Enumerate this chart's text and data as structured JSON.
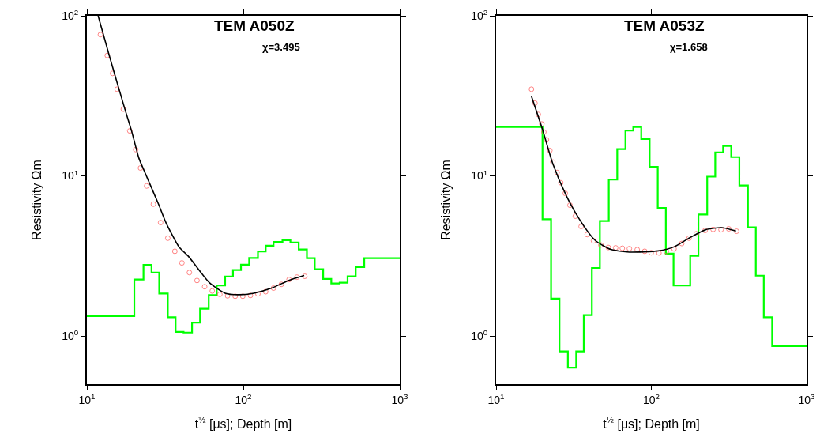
{
  "chart_data": [
    {
      "type": "line",
      "title": "TEM A050Z",
      "subtitle": "χ=3.495",
      "xlabel": "t$^{½}$ [μs]; Depth [m]",
      "ylabel": "Resistivity Ωm",
      "log": "xy",
      "xlim": [
        10,
        1000
      ],
      "ylim": [
        0.5,
        100
      ],
      "xticks": [
        {
          "value": 10,
          "label": "10$^{1}$"
        },
        {
          "value": 100,
          "label": "10$^{2}$"
        },
        {
          "value": 1000,
          "label": "10$^{3}$"
        }
      ],
      "yticks": [
        {
          "value": 1,
          "label": "10$^{0}$"
        },
        {
          "value": 10,
          "label": "10$^{1}$"
        },
        {
          "value": 100,
          "label": "10$^{2}$"
        }
      ],
      "series": [
        {
          "type": "step",
          "color": "#00ff00",
          "x": [
            10,
            20.1,
            23.0,
            25.9,
            29.0,
            32.9,
            36.9,
            41.5,
            47.0,
            52.9,
            60.1,
            67.6,
            76.5,
            85.9,
            96.6,
            109,
            124,
            139,
            156,
            178,
            200,
            226,
            255,
            286,
            324,
            365,
            413,
            464,
            523,
            593,
            1000
          ],
          "values": [
            1.33,
            2.25,
            2.78,
            2.49,
            1.84,
            1.31,
            1.06,
            1.05,
            1.21,
            1.48,
            1.8,
            2.07,
            2.35,
            2.58,
            2.79,
            3.07,
            3.37,
            3.66,
            3.87,
            3.96,
            3.83,
            3.47,
            3.06,
            2.61,
            2.27,
            2.13,
            2.15,
            2.36,
            2.69,
            3.06,
            3.06
          ]
        },
        {
          "type": "scatter",
          "color": "#ff6666",
          "marker": "circle",
          "x": [
            12.2,
            13.5,
            14.6,
            15.6,
            17.1,
            18.8,
            20.5,
            22.0,
            24.1,
            26.6,
            29.6,
            32.9,
            36.5,
            40.5,
            45.2,
            50.6,
            56.6,
            63.3,
            70.8,
            79.3,
            88.7,
            99.2,
            111,
            124,
            139,
            156,
            175,
            196,
            220,
            247
          ],
          "values": [
            76.3,
            56.5,
            43.7,
            34.8,
            26.1,
            19.1,
            14.6,
            11.2,
            8.65,
            6.66,
            5.11,
            4.08,
            3.38,
            2.86,
            2.49,
            2.22,
            2.03,
            1.91,
            1.82,
            1.78,
            1.77,
            1.77,
            1.79,
            1.83,
            1.89,
            1.99,
            2.1,
            2.25,
            2.33,
            2.36
          ]
        },
        {
          "type": "line",
          "color": "#000000",
          "x": [
            11.8,
            13.9,
            17.5,
            19.3,
            21.5,
            23.2,
            28.7,
            32.0,
            38.8,
            44.5,
            60.7,
            76.5,
            92.9,
            117,
            154,
            194,
            245
          ],
          "values": [
            100,
            56.5,
            26.1,
            19.1,
            12.9,
            10.8,
            6.66,
            5.11,
            3.6,
            3.15,
            2.15,
            1.85,
            1.81,
            1.85,
            2.0,
            2.22,
            2.39
          ]
        }
      ]
    },
    {
      "type": "line",
      "title": "TEM A053Z",
      "subtitle": "χ=1.658",
      "xlabel": "t$^{½}$ [μs]; Depth [m]",
      "ylabel": "Resistivity Ωm",
      "log": "xy",
      "xlim": [
        10,
        1000
      ],
      "ylim": [
        0.5,
        100
      ],
      "xticks": [
        {
          "value": 10,
          "label": "10$^{1}$"
        },
        {
          "value": 100,
          "label": "10$^{2}$"
        },
        {
          "value": 1000,
          "label": "10$^{3}$"
        }
      ],
      "yticks": [
        {
          "value": 1,
          "label": "10$^{0}$"
        },
        {
          "value": 10,
          "label": "10$^{1}$"
        },
        {
          "value": 100,
          "label": "10$^{2}$"
        }
      ],
      "series": [
        {
          "type": "step",
          "color": "#00ff00",
          "x": [
            10,
            19.9,
            22.6,
            25.6,
            29.0,
            32.8,
            36.7,
            41.4,
            46.6,
            53.2,
            60.3,
            68.1,
            76.5,
            86.1,
            97.5,
            110,
            124,
            139,
            178,
            201,
            229,
            258,
            290,
            327,
            369,
            419,
            471,
            530,
            600,
            1000
          ],
          "values": [
            20.2,
            5.36,
            1.71,
            0.8,
            0.634,
            0.8,
            1.35,
            2.66,
            5.22,
            9.48,
            14.7,
            19.2,
            20.2,
            17.0,
            11.4,
            6.31,
            3.27,
            2.07,
            3.17,
            5.74,
            9.89,
            14.0,
            15.4,
            13.1,
            8.72,
            4.77,
            2.38,
            1.31,
            0.865,
            0.865
          ]
        },
        {
          "type": "scatter",
          "color": "#ff6666",
          "marker": "circle",
          "x": [
            16.9,
            17.8,
            18.7,
            19.7,
            20.3,
            21.1,
            22.2,
            23.2,
            24.7,
            26.1,
            27.9,
            29.9,
            32.4,
            35.3,
            38.6,
            42.4,
            47.3,
            52.8,
            58.9,
            65.0,
            72.2,
            81.1,
            90.6,
            99.8,
            112,
            125,
            140,
            157,
            175,
            195,
            222,
            250,
            281,
            315,
            354
          ],
          "values": [
            34.8,
            28.5,
            24.2,
            21.1,
            18.8,
            16.8,
            14.4,
            12.2,
            10.5,
            9.06,
            7.78,
            6.56,
            5.6,
            4.83,
            4.3,
            3.93,
            3.7,
            3.57,
            3.55,
            3.53,
            3.51,
            3.46,
            3.38,
            3.31,
            3.3,
            3.37,
            3.5,
            3.78,
            4.08,
            4.35,
            4.56,
            4.63,
            4.61,
            4.67,
            4.51
          ]
        },
        {
          "type": "line",
          "color": "#000000",
          "x": [
            16.9,
            19.9,
            23.2,
            28.3,
            34.4,
            43.4,
            54.8,
            72.2,
            111,
            140,
            177,
            224,
            283,
            351
          ],
          "values": [
            31.4,
            19.5,
            11.9,
            7.54,
            5.36,
            3.96,
            3.47,
            3.34,
            3.4,
            3.6,
            4.11,
            4.61,
            4.75,
            4.53
          ]
        }
      ]
    }
  ]
}
